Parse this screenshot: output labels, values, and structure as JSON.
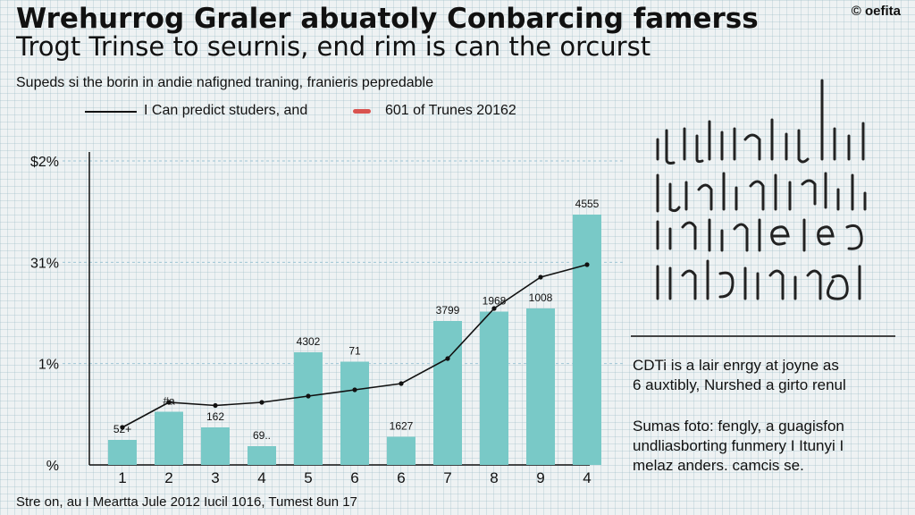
{
  "header": {
    "title_line1": "Wrehurrog Graler abuatoly Conbarcing famerss",
    "title_line2": "Trogt Trinse to seurnis, end rim is can the orcurst",
    "brand": "© oefita",
    "subtitle": "Supeds si the borin in andie nafigned traning, franieris pepredable"
  },
  "legend": {
    "series1_label": "I Can predict studers, and",
    "series2_label": "601 of Trunes 20162"
  },
  "side_panel": {
    "handwriting_image": "handwritten-text-image",
    "note1": "CDTi is a lair enrgy at joyne as\n6 auxtibly, Nurshed a girto renul",
    "note2": "Sumas foto: fengly, a guagisfon\nundliasborting funmery I Itunyi I\nmelaz anders.          camcis se."
  },
  "footer": {
    "text": "Stre on, au I Meartta Jule 2012 Iucil 1016, Tumest 8un 17"
  },
  "colors": {
    "bar": "#79c9c7",
    "line": "#111111",
    "accent_red": "#d9534f",
    "gridline": "#9fc4d4"
  },
  "chart_data": {
    "type": "bar",
    "categories": [
      "1",
      "2",
      "3",
      "4",
      "5",
      "6",
      "6",
      "7",
      "8",
      "9",
      "4"
    ],
    "ytick_labels": [
      "$2%",
      "31%",
      "1%",
      "%"
    ],
    "ylim": [
      0,
      100
    ],
    "grid": true,
    "legend_position": "top-left",
    "series": [
      {
        "type": "bar",
        "values": [
          8,
          17,
          12,
          6,
          36,
          33,
          9,
          46,
          49,
          50,
          80
        ],
        "labels": [
          "52+",
          "#a",
          "162",
          "69..",
          "4302",
          "71",
          "1627",
          "3799",
          "1968",
          "1008",
          "4555"
        ]
      },
      {
        "type": "line",
        "values": [
          12,
          20,
          19,
          20,
          22,
          24,
          26,
          34,
          50,
          60,
          64
        ]
      }
    ]
  }
}
